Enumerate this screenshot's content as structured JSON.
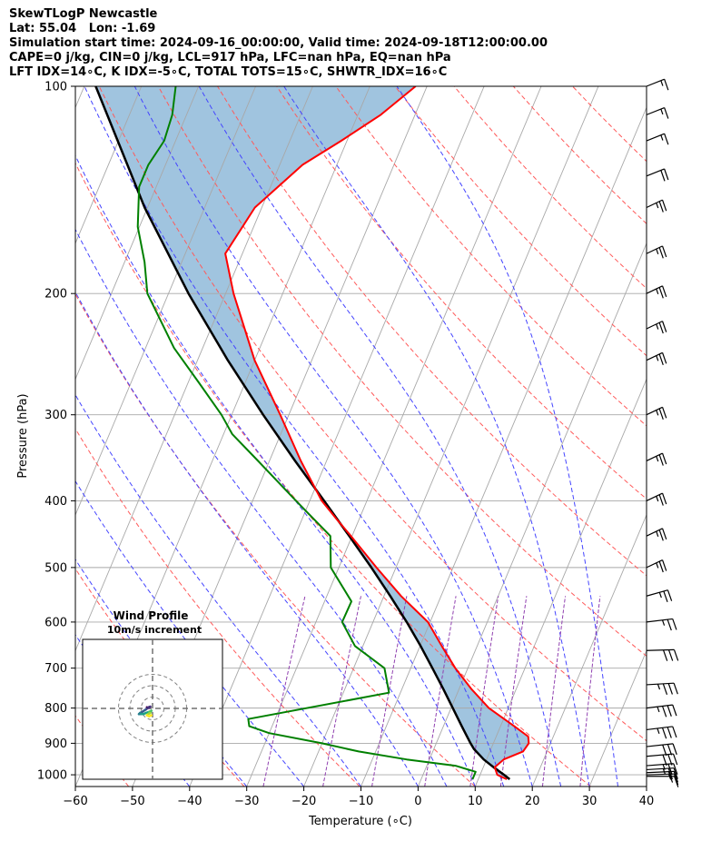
{
  "header": {
    "line1": "SkewTLogP Newcastle",
    "line2": "Lat: 55.04   Lon: -1.69",
    "line3": "Simulation start time: 2024-09-16_00:00:00, Valid time: 2024-09-18T12:00:00.00",
    "line4": "CAPE=0 j/kg, CIN=0 j/kg, LCL=917 hPa, LFC=nan hPa, EQ=nan hPa",
    "line5": "LFT IDX=14∘C, K IDX=-5∘C, TOTAL TOTS=15∘C, SHWTR_IDX=16∘C"
  },
  "colors": {
    "temperature": "#ff0000",
    "dewpoint": "#008000",
    "parcel": "#000000",
    "shade": "#a0c4df",
    "dry_adiabat": "#ff5a5a",
    "moist_adiabat": "#4444ff",
    "mixing_ratio": "#9040b0",
    "isotherm": "#a8a8a8"
  },
  "chart_data": {
    "type": "skewt",
    "title": "SkewTLogP Newcastle",
    "xlabel": "Temperature (∘C)",
    "ylabel": "Pressure (hPa)",
    "xlim": [
      -60,
      40
    ],
    "ylim": [
      1040,
      100
    ],
    "xticks": [
      -60,
      -50,
      -40,
      -30,
      -20,
      -10,
      0,
      10,
      20,
      30,
      40
    ],
    "yticks": [
      100,
      200,
      300,
      400,
      500,
      600,
      700,
      800,
      900,
      1000
    ],
    "skew_deg_per_decade": 50.7,
    "temperature": {
      "pressure": [
        1015,
        1000,
        975,
        950,
        925,
        900,
        880,
        850,
        800,
        750,
        700,
        650,
        600,
        550,
        500,
        450,
        425,
        400,
        350,
        300,
        250,
        200,
        175,
        150,
        130,
        120,
        110,
        100
      ],
      "value": [
        15,
        13,
        12,
        13,
        15.8,
        16.2,
        15.6,
        12.4,
        6.6,
        2.1,
        -2.2,
        -6.2,
        -10.4,
        -17,
        -23.4,
        -30.2,
        -34,
        -37.9,
        -44.5,
        -51.5,
        -60,
        -68.6,
        -73,
        -71.2,
        -66,
        -61,
        -56,
        -52
      ]
    },
    "dewpoint": {
      "pressure": [
        1015,
        990,
        970,
        950,
        925,
        900,
        870,
        850,
        830,
        760,
        700,
        650,
        600,
        560,
        500,
        450,
        400,
        350,
        320,
        300,
        270,
        240,
        200,
        180,
        160,
        140,
        130,
        120,
        110,
        100
      ],
      "value": [
        9,
        9,
        5,
        -4,
        -13,
        -20,
        -30,
        -34,
        -34.7,
        -12,
        -14.6,
        -21.4,
        -25.4,
        -25.3,
        -31.4,
        -33.8,
        -42.4,
        -52,
        -58.5,
        -61.8,
        -68,
        -75,
        -83.7,
        -86.5,
        -90.3,
        -93,
        -93,
        -92,
        -92.5,
        -94
      ]
    },
    "parcel": {
      "pressure": [
        1015,
        1000,
        975,
        950,
        917,
        900,
        850,
        800,
        750,
        700,
        650,
        600,
        550,
        500,
        450,
        400,
        350,
        300,
        250,
        200,
        150,
        100
      ],
      "value": [
        15.5,
        14.2,
        11.8,
        9.5,
        7.0,
        6.0,
        3.2,
        0.3,
        -2.8,
        -6.2,
        -9.9,
        -14.1,
        -18.9,
        -24.3,
        -30.5,
        -37.5,
        -45.5,
        -54.5,
        -64.7,
        -76.5,
        -90.5,
        -108
      ]
    },
    "wind_barbs": {
      "pressure": [
        1005,
        1000,
        993,
        983,
        970,
        940,
        910,
        860,
        800,
        740,
        660,
        600,
        550,
        500,
        450,
        400,
        350,
        300,
        250,
        225,
        200,
        175,
        150,
        135,
        120,
        110,
        100
      ],
      "speed_kt": [
        10,
        15,
        20,
        25,
        25,
        30,
        30,
        35,
        35,
        35,
        30,
        25,
        25,
        25,
        25,
        25,
        25,
        25,
        25,
        25,
        25,
        25,
        25,
        20,
        15,
        15,
        15
      ],
      "direction_deg": [
        90,
        95,
        98,
        100,
        103,
        105,
        108,
        110,
        110,
        100,
        95,
        110,
        130,
        145,
        145,
        145,
        145,
        145,
        145,
        145,
        145,
        145,
        145,
        140,
        140,
        140,
        140
      ]
    },
    "inset": {
      "title": "Wind Profile",
      "subtitle": "10m/s increment",
      "rings_ms": [
        10,
        20,
        30
      ],
      "hodograph_uv": [
        [
          -5,
          1
        ],
        [
          -4,
          0.5
        ],
        [
          -3,
          0.8
        ],
        [
          -2,
          1.5
        ],
        [
          -3,
          1.2
        ],
        [
          -6,
          -1
        ],
        [
          -9,
          -3
        ],
        [
          -11,
          -4
        ],
        [
          -12,
          -5
        ],
        [
          -10,
          -5
        ],
        [
          -8,
          -5
        ],
        [
          -6,
          -4
        ],
        [
          -3,
          -3
        ],
        [
          -1,
          -2
        ],
        [
          -2,
          -4
        ],
        [
          -4,
          -5
        ],
        [
          -5,
          -6
        ],
        [
          -3,
          -7
        ],
        [
          -1,
          -6
        ]
      ]
    },
    "dry_adiabats_theta_K": [
      220,
      240,
      260,
      280,
      300,
      320,
      340,
      360,
      380,
      400,
      420,
      440,
      460,
      480
    ],
    "moist_adiabats_startC": [
      -40,
      -30,
      -20,
      -10,
      0,
      5,
      10,
      15,
      20,
      25,
      30,
      35
    ],
    "mixing_ratio_gkg": [
      0.4,
      1,
      2,
      4,
      7,
      10,
      16,
      24
    ]
  }
}
